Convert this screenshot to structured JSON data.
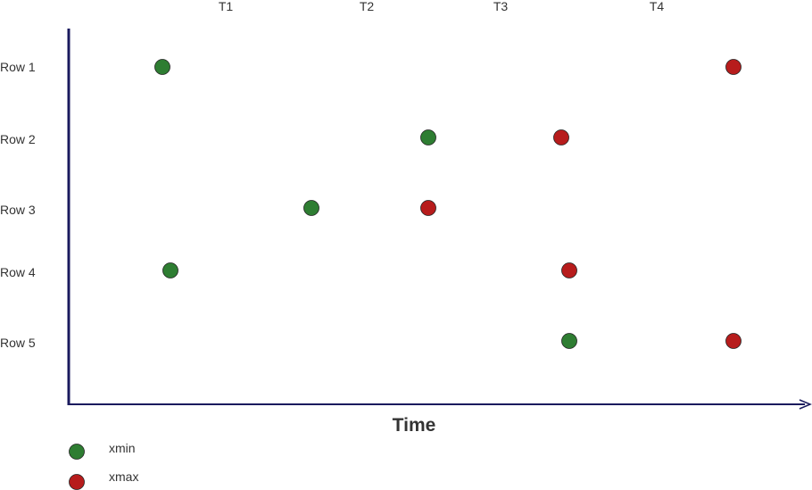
{
  "columns": [
    "T1",
    "T2",
    "T3",
    "T4"
  ],
  "rows": [
    "Row 1",
    "Row 2",
    "Row 3",
    "Row 4",
    "Row 5"
  ],
  "x_axis_label": "Time",
  "legend": [
    {
      "label": "xmin",
      "color": "#2e7d32"
    },
    {
      "label": "xmax",
      "color": "#b71c1c"
    }
  ],
  "colors": {
    "axis": "#1a1a5e",
    "xmin": "#2e7d32",
    "xmax": "#b71c1c"
  },
  "row_markers": [
    {
      "row": "Row 1",
      "xmin": "before T1",
      "xmax": "after T4"
    },
    {
      "row": "Row 2",
      "xmin": "T2",
      "xmax": "T3"
    },
    {
      "row": "Row 3",
      "xmin": "T1",
      "xmax": "T2"
    },
    {
      "row": "Row 4",
      "xmin": "before T1",
      "xmax": "T3"
    },
    {
      "row": "Row 5",
      "xmin": "T3",
      "xmax": "after T4"
    }
  ]
}
